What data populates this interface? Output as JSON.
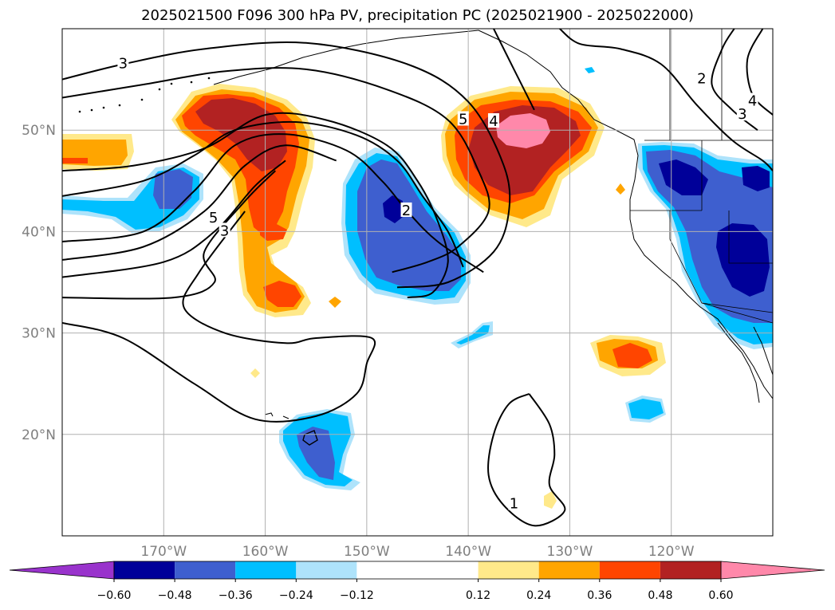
{
  "chart_data": {
    "type": "map",
    "title": "2025021500 F096 300 hPa PV, precipitation PC (2025021900 - 2025022000)",
    "lon_range": [
      -180,
      -110
    ],
    "lat_range": [
      10,
      60
    ],
    "grid": true,
    "x_ticks": [
      "170°W",
      "160°W",
      "150°W",
      "140°W",
      "130°W",
      "120°W"
    ],
    "x_tick_values": [
      -170,
      -160,
      -150,
      -140,
      -130,
      -120
    ],
    "y_ticks": [
      "50°N",
      "40°N",
      "30°N",
      "20°N"
    ],
    "y_tick_values": [
      50,
      40,
      30,
      20
    ],
    "colorbar": {
      "ticks": [
        "−0.60",
        "−0.48",
        "−0.36",
        "−0.24",
        "−0.12",
        "0.12",
        "0.24",
        "0.36",
        "0.48",
        "0.60"
      ],
      "bins": [
        {
          "range": [
            -0.72,
            -0.6
          ],
          "color": "#9933cc"
        },
        {
          "range": [
            -0.6,
            -0.48
          ],
          "color": "#000099"
        },
        {
          "range": [
            -0.48,
            -0.36
          ],
          "color": "#3e5fcf"
        },
        {
          "range": [
            -0.36,
            -0.24
          ],
          "color": "#00bfff"
        },
        {
          "range": [
            -0.24,
            -0.12
          ],
          "color": "#aee3fb"
        },
        {
          "range": [
            -0.12,
            0.12
          ],
          "color": "#ffffff"
        },
        {
          "range": [
            0.12,
            0.24
          ],
          "color": "#ffe98a"
        },
        {
          "range": [
            0.24,
            0.36
          ],
          "color": "#ffa500"
        },
        {
          "range": [
            0.36,
            0.48
          ],
          "color": "#ff4500"
        },
        {
          "range": [
            0.48,
            0.6
          ],
          "color": "#b22222"
        },
        {
          "range": [
            0.6,
            0.72
          ],
          "color": "#ff88aa"
        }
      ],
      "extend": "both"
    },
    "pv_contours": {
      "labels": [
        {
          "text": "3",
          "lon": -174,
          "lat": 56.5
        },
        {
          "text": "5",
          "lon": -140.5,
          "lat": 51.0
        },
        {
          "text": "4",
          "lon": -137.5,
          "lat": 50.8
        },
        {
          "text": "2",
          "lon": -146.1,
          "lat": 42.0
        },
        {
          "text": "5",
          "lon": -165.1,
          "lat": 41.3
        },
        {
          "text": "3",
          "lon": -164.0,
          "lat": 40.0
        },
        {
          "text": "2",
          "lon": -117.0,
          "lat": 55.0
        },
        {
          "text": "4",
          "lon": -112.0,
          "lat": 52.8
        },
        {
          "text": "3",
          "lon": -113.0,
          "lat": 51.5
        },
        {
          "text": "1",
          "lon": -135.5,
          "lat": 13.1
        }
      ],
      "lines": [
        [
          [
            -180,
            55.0
          ],
          [
            -174,
            56.5
          ],
          [
            -166,
            58.0
          ],
          [
            -156,
            58.6
          ],
          [
            -146,
            56.5
          ],
          [
            -140,
            52.8
          ],
          [
            -136.5,
            46.5
          ],
          [
            -136,
            42.0
          ],
          [
            -137.5,
            38.0
          ],
          [
            -142,
            35.0
          ],
          [
            -147,
            34.5
          ]
        ],
        [
          [
            -180,
            53.2
          ],
          [
            -172,
            54.5
          ],
          [
            -164,
            55.8
          ],
          [
            -156,
            56.0
          ],
          [
            -148,
            54.0
          ],
          [
            -142,
            51.0
          ],
          [
            -139,
            46.0
          ],
          [
            -138,
            42.0
          ],
          [
            -141,
            38.5
          ],
          [
            -144,
            37.0
          ],
          [
            -147.5,
            36.0
          ]
        ],
        [
          [
            -180,
            46.0
          ],
          [
            -173,
            46.5
          ],
          [
            -166,
            48.2
          ],
          [
            -160,
            51.5
          ],
          [
            -154,
            51.0
          ],
          [
            -148,
            48.5
          ],
          [
            -145,
            45.0
          ],
          [
            -143,
            41.0
          ],
          [
            -142,
            37.0
          ],
          [
            -143.5,
            34.0
          ],
          [
            -146,
            33.5
          ]
        ],
        [
          [
            -180,
            43.5
          ],
          [
            -172,
            45.0
          ],
          [
            -167,
            47.5
          ],
          [
            -163,
            50.0
          ],
          [
            -157,
            50.8
          ],
          [
            -151,
            49.5
          ],
          [
            -147,
            47.0
          ],
          [
            -144.5,
            43.5
          ],
          [
            -142,
            40.0
          ],
          [
            -140.5,
            36.5
          ]
        ],
        [
          [
            -180,
            39.0
          ],
          [
            -172,
            40.0
          ],
          [
            -167,
            44.0
          ],
          [
            -163,
            48.5
          ],
          [
            -158,
            49.6
          ],
          [
            -152,
            48.0
          ],
          [
            -148.5,
            45.0
          ],
          [
            -146,
            42.0
          ],
          [
            -143,
            39.0
          ],
          [
            -138.5,
            36.0
          ]
        ],
        [
          [
            -180,
            37.2
          ],
          [
            -172,
            38.5
          ],
          [
            -166,
            42.0
          ],
          [
            -162,
            46.5
          ],
          [
            -158,
            48.5
          ],
          [
            -153,
            47.0
          ]
        ],
        [
          [
            -180,
            35.5
          ],
          [
            -170,
            37.0
          ],
          [
            -165,
            40.0
          ],
          [
            -161,
            44.5
          ],
          [
            -158,
            47.0
          ]
        ],
        [
          [
            -180,
            33.5
          ],
          [
            -169,
            33.5
          ],
          [
            -165,
            35.0
          ],
          [
            -166,
            38.0
          ],
          [
            -162,
            43.0
          ],
          [
            -159,
            46.0
          ]
        ],
        [
          [
            -180,
            31.0
          ],
          [
            -174,
            29.5
          ],
          [
            -167,
            25.0
          ],
          [
            -161,
            21.5
          ],
          [
            -155,
            21.8
          ],
          [
            -151,
            24.0
          ],
          [
            -150,
            27.0
          ],
          [
            -149.5,
            29.5
          ],
          [
            -155,
            29.5
          ],
          [
            -158,
            29.0
          ],
          [
            -164,
            30.0
          ],
          [
            -168,
            32.5
          ],
          [
            -166.5,
            36.0
          ],
          [
            -162,
            42.0
          ]
        ],
        [
          [
            -134,
            24.0
          ],
          [
            -136,
            23.0
          ],
          [
            -137.5,
            20.0
          ],
          [
            -138,
            16.0
          ],
          [
            -136.5,
            13.0
          ],
          [
            -133.5,
            11.0
          ],
          [
            -130.5,
            12.5
          ],
          [
            -132.0,
            15.0
          ],
          [
            -131.5,
            18.0
          ],
          [
            -132.0,
            21.0
          ],
          [
            -134,
            24.0
          ]
        ],
        [
          [
            -131,
            60
          ],
          [
            -129,
            58.5
          ],
          [
            -125,
            58.0
          ],
          [
            -121,
            56.5
          ],
          [
            -117.5,
            52.5
          ],
          [
            -114,
            49.0
          ],
          [
            -111,
            47.0
          ],
          [
            -110,
            46.0
          ]
        ],
        [
          [
            -113.8,
            60
          ],
          [
            -115,
            58.0
          ],
          [
            -116,
            54.5
          ],
          [
            -114,
            52.0
          ],
          [
            -111.5,
            50.0
          ]
        ],
        [
          [
            -111.0,
            60
          ],
          [
            -112.5,
            57.0
          ],
          [
            -112.0,
            53.5
          ],
          [
            -110.0,
            51.5
          ]
        ],
        [
          [
            -137.5,
            60
          ],
          [
            -135.5,
            56.0
          ],
          [
            -133.5,
            52.0
          ]
        ]
      ]
    }
  }
}
